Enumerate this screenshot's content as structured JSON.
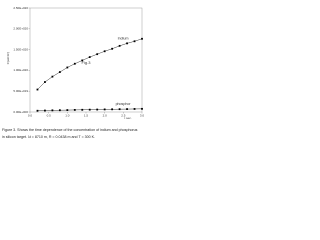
{
  "chart_data": {
    "type": "line",
    "ylabel": "C(at/cm³)",
    "xlabel": "t sec.",
    "annotation": "Fig.3",
    "x": [
      0.2,
      0.4,
      0.6,
      0.8,
      1.0,
      1.2,
      1.4,
      1.6,
      1.8,
      2.0,
      2.2,
      2.4,
      2.6,
      2.8,
      3.0
    ],
    "series": [
      {
        "name": "Indium",
        "color": "#000000",
        "values": [
          5.4e+19,
          7.2e+19,
          8.5e+19,
          9.6e+19,
          1.07e+20,
          1.16e+20,
          1.24e+20,
          1.32e+20,
          1.39e+20,
          1.46e+20,
          1.52e+20,
          1.59e+20,
          1.65e+20,
          1.7e+20,
          1.76e+20
        ]
      },
      {
        "name": "phosphor",
        "color": "#000000",
        "values": [
          3e+18,
          3.5e+18,
          4e+18,
          4.3e+18,
          4.6e+18,
          5e+18,
          5.3e+18,
          5.6e+18,
          5.9e+18,
          6.2e+18,
          6.5e+18,
          6.8e+18,
          7e+18,
          7.3e+18,
          7.6e+18
        ]
      }
    ],
    "xlim": [
      0,
      3
    ],
    "xticks": [
      {
        "value": 0,
        "label": "0.0"
      },
      {
        "value": 0.5,
        "label": "0.5"
      },
      {
        "value": 1,
        "label": "1.0"
      },
      {
        "value": 1.5,
        "label": "1.5"
      },
      {
        "value": 2,
        "label": "2.0"
      },
      {
        "value": 2.5,
        "label": "2.5"
      },
      {
        "value": 3,
        "label": "3.0"
      }
    ],
    "ylim": [
      0,
      2.5e+20
    ],
    "yticks": [
      {
        "value": 0,
        "label": "0.00E+000"
      },
      {
        "value": 5e+19,
        "label": "5.00E+019"
      },
      {
        "value": 1e+20,
        "label": "1.00E+020"
      },
      {
        "value": 1.5e+20,
        "label": "1.50E+020"
      },
      {
        "value": 2e+20,
        "label": "2.00E+020"
      },
      {
        "value": 2.5e+20,
        "label": "2.50E+020"
      }
    ],
    "grid": false
  },
  "caption": {
    "line1": "Figure 3. Shows the time dependence of the concentration of indium and phosphorus",
    "line2": "in silicon target. λt = 8710 m, R = 0.0438 m and T = 300 K."
  }
}
